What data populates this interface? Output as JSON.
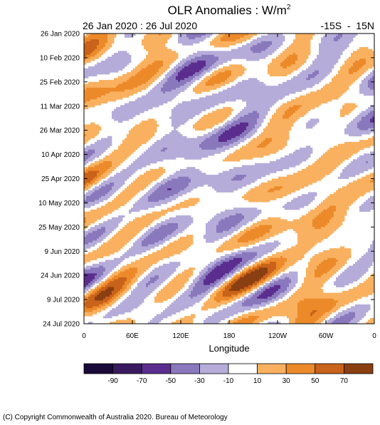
{
  "chart_data": {
    "type": "heatmap",
    "title": "OLR Anomalies : W/m",
    "title_superscript": "2",
    "subtitle_left": "26 Jan 2020 : 26 Jul 2020",
    "subtitle_right": "-15S  -  15N",
    "xlabel": "Longitude",
    "ylabel": "",
    "x_ticks": [
      "0",
      "60E",
      "120E",
      "180",
      "120W",
      "60W",
      "0"
    ],
    "x_range": [
      0,
      360
    ],
    "y_ticks": [
      "26 Jan 2020",
      "10 Feb 2020",
      "25 Feb 2020",
      "11 Mar 2020",
      "26 Mar 2020",
      "10 Apr 2020",
      "25 Apr 2020",
      "10 May 2020",
      "25 May 2020",
      "9 Jun 2020",
      "24 Jun 2020",
      "9 Jul 2020",
      "24 Jul 2020"
    ],
    "y_range": [
      "26 Jan 2020",
      "26 Jul 2020"
    ],
    "y_axis_reversed": true,
    "colorbar": {
      "labels": [
        "-90",
        "-70",
        "-50",
        "-30",
        "-10",
        "10",
        "30",
        "50",
        "70"
      ],
      "colors": [
        "#1a0a3a",
        "#3a1a5e",
        "#5b2d8e",
        "#8a78bd",
        "#b5acd9",
        "#ffffff",
        "#f9b160",
        "#ec8a2a",
        "#c9621a",
        "#8a3f12"
      ]
    }
  },
  "footer": {
    "copyright": "(C) Copyright Commonwealth of Australia 2020. Bureau of Meteorology"
  }
}
